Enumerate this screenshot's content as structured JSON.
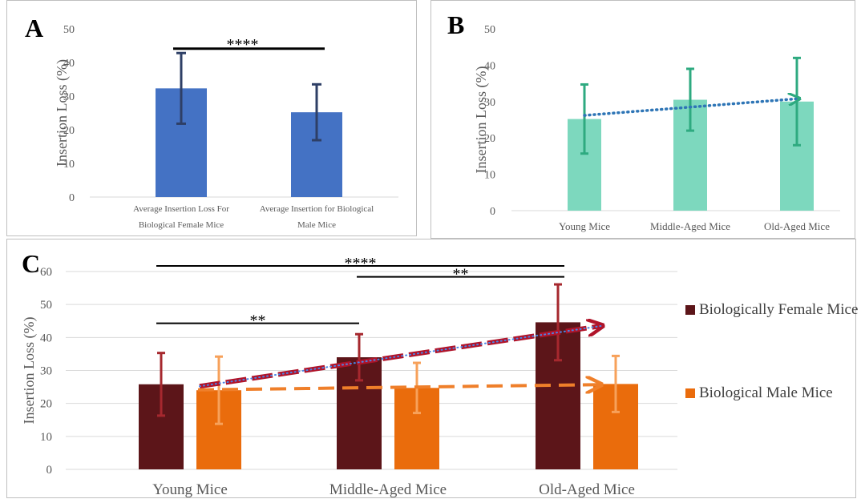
{
  "panels": {
    "a": {
      "letter": "A"
    },
    "b": {
      "letter": "B"
    },
    "c": {
      "letter": "C"
    }
  },
  "colors": {
    "bar_a": "#4472c4",
    "err_a": "#2e3f66",
    "bar_b": "#7dd8be",
    "err_b": "#2eaa80",
    "trend_b": "#2e75b6",
    "female": "#5c1519",
    "female_err": "#a6282e",
    "male": "#ea6c0c",
    "male_err": "#f7a15a",
    "trend_female": "#b0142a",
    "trend_dots": "#4a86e8",
    "trend_male": "#ef7f2a"
  },
  "chart_data": [
    {
      "id": "A",
      "type": "bar",
      "categories": [
        "Average Insertion Loss For Biological Female Mice",
        "Average Insertion for Biological Male Mice"
      ],
      "category_lines": [
        [
          "Average Insertion Loss For",
          "Biological Female Mice"
        ],
        [
          "Average Insertion for Biological",
          "Male Mice"
        ]
      ],
      "values": [
        32.3,
        25.2
      ],
      "error": [
        10.5,
        8.3
      ],
      "ylabel": "Insertion Loss (%)",
      "ylim": [
        0,
        50
      ],
      "yticks": [
        0,
        10,
        20,
        30,
        40,
        50
      ],
      "significance": [
        {
          "from": 0,
          "to": 1,
          "label": "****",
          "y": 46
        }
      ]
    },
    {
      "id": "B",
      "type": "bar",
      "categories": [
        "Young Mice",
        "Middle-Aged Mice",
        "Old-Aged Mice"
      ],
      "category_lines": [
        [
          "Young Mice"
        ],
        [
          "Middle-Aged Mice"
        ],
        [
          "Old-Aged Mice"
        ]
      ],
      "values": [
        25.2,
        30.5,
        30
      ],
      "error": [
        9.5,
        8.5,
        12
      ],
      "ylabel": "Insertion Loss (%)",
      "ylim": [
        0,
        50
      ],
      "yticks": [
        0,
        10,
        20,
        30,
        40,
        50
      ],
      "trendline": {
        "from": 26.2,
        "to": 30.8
      }
    },
    {
      "id": "C",
      "type": "bar",
      "categories": [
        "Young Mice",
        "Middle-Aged Mice",
        "Old-Aged Mice"
      ],
      "category_lines": [
        [
          "Young Mice"
        ],
        [
          "Middle-Aged Mice"
        ],
        [
          "Old-Aged Mice"
        ]
      ],
      "series": [
        {
          "name": "Biologically Female Mice",
          "values": [
            25.8,
            34,
            44.6
          ],
          "error": [
            9.5,
            7,
            11.5
          ]
        },
        {
          "name": "Biological Male Mice",
          "values": [
            24,
            24.7,
            25.9
          ],
          "error": [
            10.2,
            7.6,
            8.5
          ]
        }
      ],
      "ylabel": "Insertion Loss (%)",
      "ylim": [
        0,
        60
      ],
      "yticks": [
        0,
        10,
        20,
        30,
        40,
        50,
        60
      ],
      "legend_position": "right",
      "trendlines": [
        {
          "series": 0,
          "from": 25.2,
          "to": 43.5
        },
        {
          "series": 1,
          "from": 24.1,
          "to": 25.7
        }
      ],
      "significance": [
        {
          "from": 0,
          "to": 2,
          "label": "****",
          "y": 61.7
        },
        {
          "from": 1,
          "to": 2,
          "label": "**",
          "y": 58.4
        },
        {
          "from": 0,
          "to": 1,
          "label": "**",
          "y": 44.3
        }
      ]
    }
  ]
}
